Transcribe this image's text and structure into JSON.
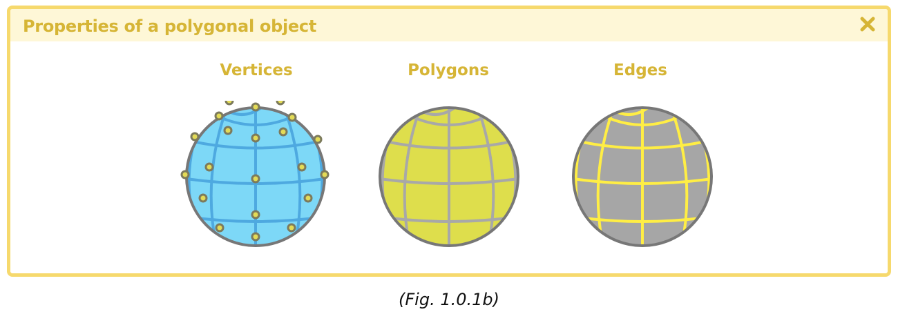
{
  "panel": {
    "title": "Properties of a polygonal object",
    "close_icon": "close-x-icon",
    "accent_color": "#d6b536",
    "border_color": "#f6d96d",
    "header_bg": "#fef7d7"
  },
  "figures": [
    {
      "title": "Vertices",
      "fill": "#7dd8f7",
      "line_color": "#4ea9e0",
      "outline": "#777777"
    },
    {
      "title": "Polygons",
      "fill": "#dede4c",
      "line_color": "#a8a8a8",
      "outline": "#777777"
    },
    {
      "title": "Edges",
      "fill": "#a6a6a6",
      "line_color": "#ffee44",
      "outline": "#777777"
    }
  ],
  "caption": "(Fig. 1.0.1b)"
}
